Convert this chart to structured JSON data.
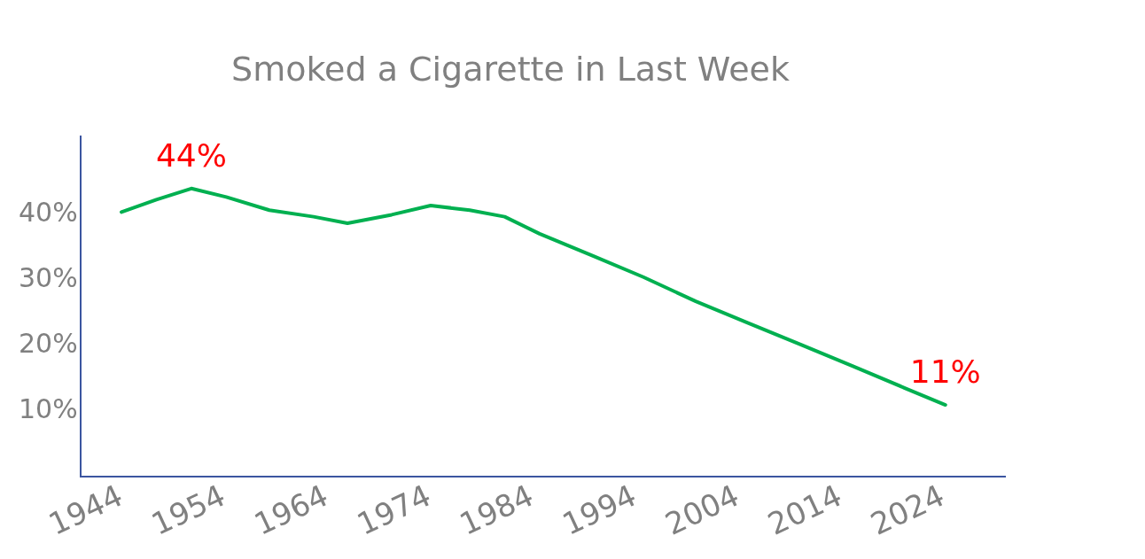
{
  "chart_data": {
    "type": "line",
    "title": "Smoked a Cigarette in Last Week",
    "x": [
      1944,
      1947.4,
      1950.8,
      1954.2,
      1958.4,
      1962.7,
      1966,
      1970.3,
      1974.1,
      1977.9,
      1981.3,
      1984.7,
      1989.8,
      1994.8,
      1999.9,
      2005,
      2010.1,
      2015.2,
      2020.2,
      2024.2
    ],
    "series": [
      {
        "color": "#00b050",
        "values": [
          40.4,
          42.3,
          44,
          42.7,
          40.7,
          39.7,
          38.7,
          40,
          41.4,
          40.7,
          39.7,
          37.1,
          33.8,
          30.5,
          26.8,
          23.5,
          20.2,
          16.9,
          13.6,
          11
        ]
      }
    ],
    "xlim": [
      1940,
      2030
    ],
    "xticks": [
      1944,
      1954,
      1964,
      1974,
      1984,
      1994,
      2004,
      2014,
      2024
    ],
    "ylim": [
      0,
      52
    ],
    "yticks": [
      {
        "value": 10,
        "label": "10%"
      },
      {
        "value": 20,
        "label": "20%"
      },
      {
        "value": 30,
        "label": "30%"
      },
      {
        "value": 40,
        "label": "40%"
      }
    ],
    "annotations": [
      {
        "text": "44%",
        "x": 1950.8,
        "y": 44
      },
      {
        "text": "11%",
        "x": 2024.2,
        "y": 11
      }
    ],
    "grid": false,
    "legend": false,
    "marker": "none",
    "line_style": "solid"
  }
}
